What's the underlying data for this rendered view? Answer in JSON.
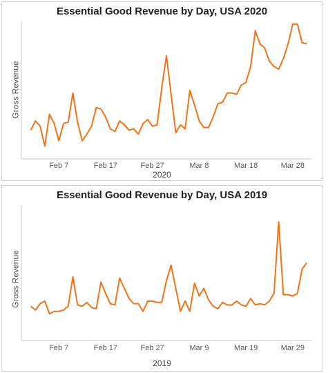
{
  "chart_data": [
    {
      "type": "line",
      "title": "Essential Good Revenue by Day, USA 2020",
      "xlabel": "2020",
      "ylabel": "Gross Revenue",
      "x_tick_labels": [
        "Feb 7",
        "Feb 17",
        "Feb 27",
        "Mar 8",
        "Mar 18",
        "Mar 28"
      ],
      "x_tick_days": [
        7,
        17,
        27,
        37,
        47,
        57
      ],
      "x_range": [
        -1,
        61
      ],
      "ylim": [
        0,
        100
      ],
      "grid": false,
      "series": [
        {
          "color": "#f47216",
          "x": [
            1,
            2,
            3,
            4,
            5,
            6,
            7,
            8,
            9,
            10,
            11,
            12,
            13,
            14,
            15,
            16,
            17,
            18,
            19,
            20,
            21,
            22,
            23,
            24,
            25,
            26,
            27,
            28,
            29,
            30,
            31,
            32,
            33,
            34,
            35,
            36,
            37,
            38,
            39,
            40,
            41,
            42,
            43,
            44,
            45,
            46,
            47,
            48,
            49,
            50,
            51,
            52,
            53,
            54,
            55,
            56,
            57,
            58,
            59,
            60
          ],
          "values": [
            18,
            25,
            21,
            6,
            30,
            23,
            10,
            23,
            24,
            46,
            24,
            10,
            15,
            21,
            35,
            34,
            28,
            19,
            17,
            25,
            22,
            18,
            19,
            15,
            23,
            26,
            21,
            22,
            50,
            74,
            45,
            16,
            22,
            19,
            48,
            37,
            25,
            20,
            20,
            28,
            38,
            39,
            46,
            46,
            45,
            52,
            54,
            66,
            93,
            83,
            80,
            70,
            66,
            64,
            72,
            83,
            98,
            98,
            84,
            83
          ]
        }
      ]
    },
    {
      "type": "line",
      "title": "Essential Good Revenue by Day, USA 2019",
      "xlabel": "2019",
      "ylabel": "Gross Revenue",
      "x_tick_labels": [
        "Feb 7",
        "Feb 17",
        "Feb 27",
        "Mar 9",
        "Mar 19",
        "Mar 29"
      ],
      "x_tick_days": [
        7,
        17,
        27,
        37,
        47,
        57
      ],
      "x_range": [
        -1,
        61
      ],
      "ylim": [
        0,
        100
      ],
      "grid": false,
      "series": [
        {
          "color": "#f47216",
          "x": [
            1,
            2,
            3,
            4,
            5,
            6,
            7,
            8,
            9,
            10,
            11,
            12,
            13,
            14,
            15,
            16,
            17,
            18,
            19,
            20,
            21,
            22,
            23,
            24,
            25,
            26,
            27,
            28,
            29,
            30,
            31,
            32,
            33,
            34,
            35,
            36,
            37,
            38,
            39,
            40,
            41,
            42,
            43,
            44,
            45,
            46,
            47,
            48,
            49,
            50,
            51,
            52,
            53,
            54,
            55,
            56,
            57,
            58,
            59,
            60
          ],
          "values": [
            22,
            19,
            24,
            26,
            16,
            18,
            18,
            19,
            22,
            45,
            23,
            22,
            25,
            21,
            20,
            41,
            32,
            24,
            23,
            44,
            36,
            28,
            24,
            24,
            18,
            26,
            26,
            25,
            25,
            42,
            54,
            36,
            18,
            26,
            18,
            40,
            30,
            36,
            27,
            22,
            20,
            25,
            23,
            23,
            26,
            23,
            22,
            28,
            23,
            24,
            23,
            26,
            32,
            88,
            31,
            31,
            30,
            32,
            51,
            56
          ]
        }
      ]
    }
  ]
}
